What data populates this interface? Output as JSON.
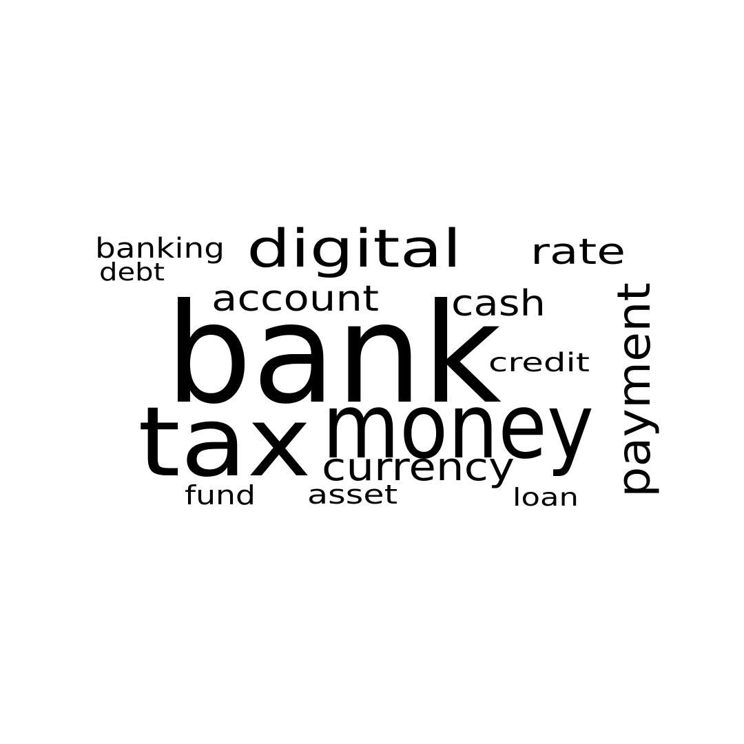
{
  "background_color": "#ffffff",
  "text_color": "#000000",
  "words": {
    "bank": "bank",
    "tax": "tax",
    "money": "money",
    "digital": "digital",
    "payment": "payment",
    "account": "account",
    "cash": "cash",
    "rate": "rate",
    "currency": "currency",
    "banking": "banking",
    "debt": "debt",
    "credit": "credit",
    "fund": "fund",
    "asset": "asset",
    "loan": "loan"
  }
}
